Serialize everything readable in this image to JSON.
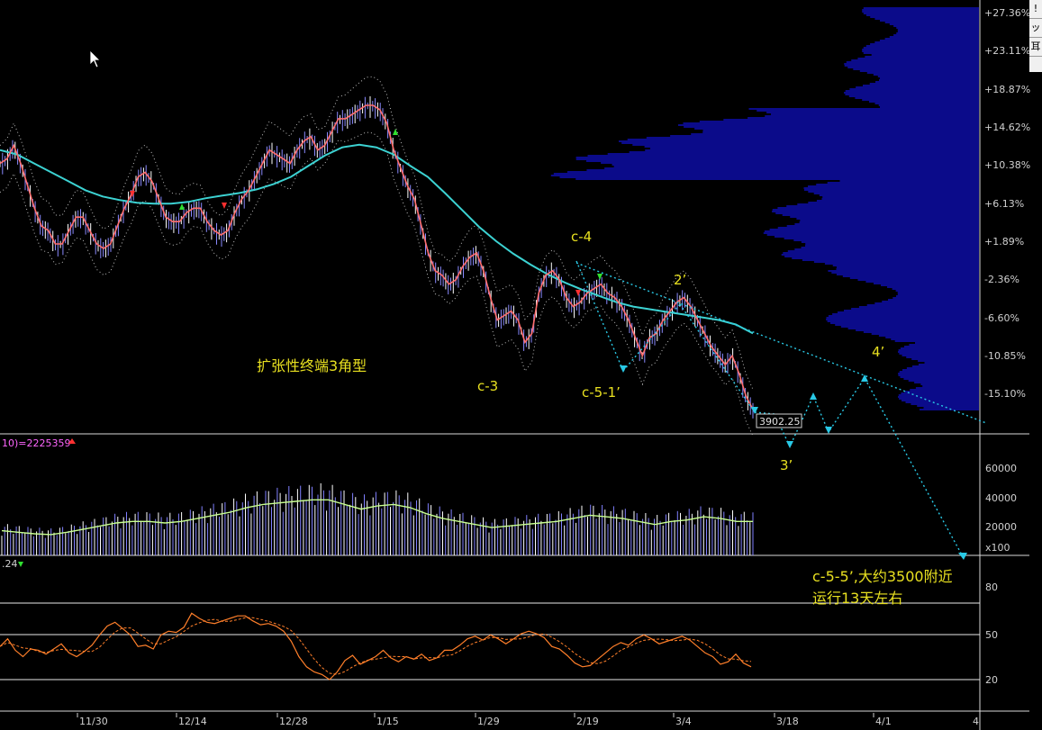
{
  "colors": {
    "background": "#000000",
    "price_line": "#ff6e6e",
    "ma_line": "#3cd2d2",
    "band": "#c8c8c8",
    "volume_profile": "#0b0b8a",
    "projection": "#29c9e6",
    "annotation": "#e8e020",
    "volume_bar": "#7878ff",
    "rsi_line": "#ff7f2a",
    "grid": "#ffffff",
    "axis_text": "#d0d0d0"
  },
  "price_axis": {
    "ticks": [
      "+27.36%",
      "+23.11%",
      "+18.87%",
      "+14.62%",
      "+10.38%",
      "+6.13%",
      "+1.89%",
      "-2.36%",
      "-6.60%",
      "-10.85%",
      "-15.10%"
    ]
  },
  "volume_panel": {
    "header": "10)=2225359",
    "ticks": [
      "60000",
      "40000",
      "20000"
    ],
    "unit": "x100"
  },
  "rsi_panel": {
    "header": ".24",
    "ticks": [
      "80",
      "50",
      "20"
    ]
  },
  "x_axis": {
    "ticks": [
      "11/30",
      "12/14",
      "12/28",
      "1/15",
      "1/29",
      "2/19",
      "3/4",
      "3/18",
      "4/1",
      "4"
    ]
  },
  "last_price_label": "3902.25",
  "annotations": {
    "pattern": "扩张性终端3角型",
    "c3": "c-3",
    "c4": "c-4",
    "c51": "c-5-1’",
    "w2": "2’",
    "w3": "3’",
    "w4": "4’",
    "target_line1": "c-5-5’,大约3500附近",
    "target_line2": "运行13天左右"
  },
  "right_box_glyphs": [
    "!",
    "ッ",
    "耳"
  ],
  "chart_data": {
    "type": "line",
    "title": "",
    "series": [
      {
        "values": [
          10.5,
          11,
          12.5,
          10.5,
          8,
          5.5,
          3.5,
          3,
          1.5,
          1.5,
          3,
          4.5,
          4.5,
          3,
          1.5,
          1,
          1.5,
          3.5,
          5.5,
          7,
          9,
          9.5,
          8.5,
          6.5,
          4.5,
          4,
          4,
          5,
          5.5,
          5.5,
          4,
          3,
          2.5,
          3,
          5,
          6.5,
          7.5,
          9,
          10.5,
          12,
          11.5,
          11,
          10.5,
          12,
          13,
          13.5,
          12,
          12.5,
          14,
          15.5,
          15.5,
          16,
          16.5,
          17,
          17,
          16.5,
          15,
          12,
          10,
          8,
          6.5,
          3.5,
          0.5,
          -1.5,
          -2,
          -3,
          -2.5,
          -1,
          0,
          0.5,
          -1.5,
          -4.5,
          -7,
          -6.5,
          -6,
          -7,
          -9.5,
          -8.5,
          -4,
          -2,
          -1.5,
          -2.5,
          -4.5,
          -5.5,
          -5,
          -4,
          -3.5,
          -3,
          -4,
          -4.5,
          -5.5,
          -7,
          -9,
          -11,
          -9,
          -8.5,
          -7,
          -6,
          -5,
          -4.5,
          -5.5,
          -7,
          -8.5,
          -10,
          -11,
          -12,
          -11,
          -13,
          -15.5,
          -17
        ]
      },
      {
        "values": [
          12,
          11.5,
          10.5,
          9.5,
          8.5,
          7.5,
          6.8,
          6.4,
          6.1,
          6,
          6,
          6.2,
          6.6,
          6.9,
          7.2,
          7.6,
          8.2,
          9,
          10.2,
          11.4,
          12.3,
          12.6,
          12.3,
          11.5,
          10.2,
          9,
          7.2,
          5.3,
          3.4,
          1.8,
          0.4,
          -0.8,
          -1.9,
          -2.8,
          -3.6,
          -4.3,
          -5,
          -5.5,
          -5.8,
          -6.1,
          -6.4,
          -6.7,
          -7,
          -7.5,
          -8.5
        ]
      }
    ],
    "ylim": [
      -17.5,
      29
    ],
    "volume": {
      "ylim": [
        0,
        70000
      ],
      "avg_values": [
        16000,
        15000,
        14000,
        13500,
        15000,
        17000,
        19000,
        21000,
        22000,
        22000,
        21000,
        22000,
        24000,
        26000,
        28000,
        31000,
        33000,
        34000,
        35000,
        36000,
        36000,
        33000,
        30000,
        32000,
        33000,
        31000,
        27000,
        24000,
        22000,
        20000,
        18000,
        19000,
        20000,
        21000,
        22000,
        24000,
        26000,
        25000,
        24000,
        22000,
        20000,
        22000,
        23000,
        25000,
        24000,
        22000,
        22000
      ]
    },
    "rsi": {
      "ylim": [
        10,
        90
      ],
      "values": [
        46,
        52,
        43,
        38,
        44,
        43,
        40,
        44,
        48,
        41,
        38,
        42,
        47,
        55,
        62,
        65,
        60,
        55,
        46,
        47,
        44,
        55,
        58,
        57,
        61,
        72,
        68,
        65,
        64,
        66,
        68,
        70,
        70,
        66,
        63,
        64,
        62,
        58,
        50,
        38,
        30,
        26,
        24,
        20,
        26,
        35,
        39,
        32,
        35,
        38,
        43,
        37,
        34,
        38,
        36,
        40,
        35,
        37,
        43,
        43,
        47,
        52,
        54,
        51,
        55,
        52,
        48,
        52,
        56,
        58,
        56,
        53,
        46,
        44,
        39,
        33,
        30,
        31,
        36,
        41,
        46,
        49,
        47,
        52,
        55,
        52,
        48,
        50,
        52,
        54,
        51,
        46,
        41,
        38,
        32,
        34,
        40,
        33,
        30
      ]
    }
  }
}
